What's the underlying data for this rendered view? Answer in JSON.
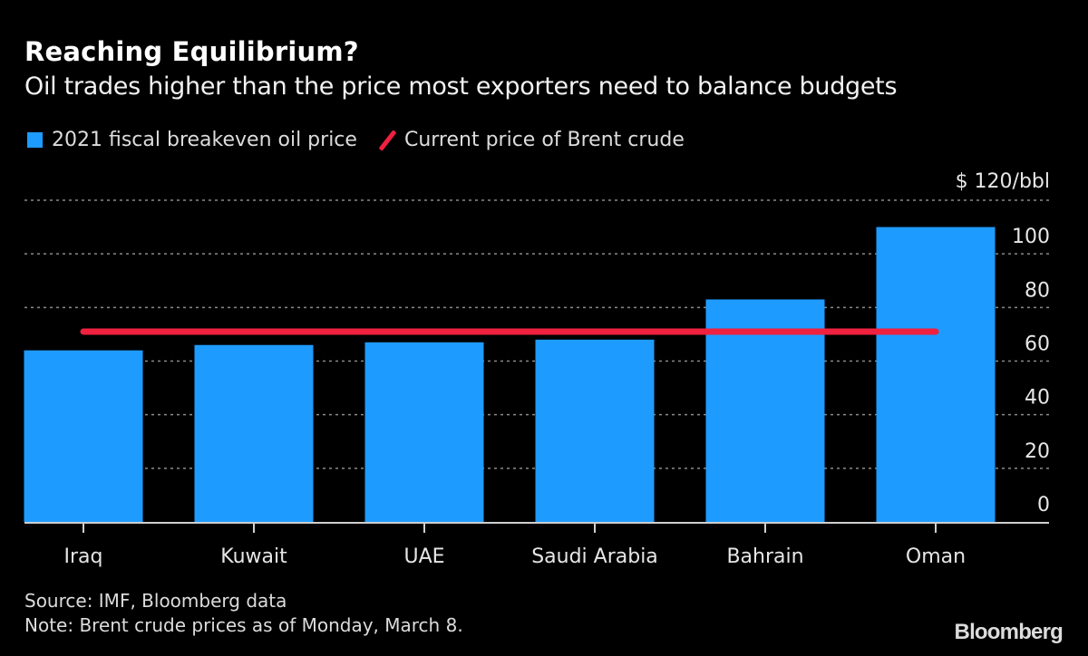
{
  "chart_data": {
    "type": "bar",
    "title": "Reaching Equilibrium?",
    "subtitle": "Oil trades higher than the price most exporters need to balance budgets",
    "categories": [
      "Iraq",
      "Kuwait",
      "UAE",
      "Saudi Arabia",
      "Bahrain",
      "Oman"
    ],
    "series": [
      {
        "name": "2021 fiscal breakeven oil price",
        "type": "bar",
        "color": "#1e9bff",
        "values": [
          64,
          66,
          67,
          68,
          83,
          110
        ]
      },
      {
        "name": "Current price of Brent crude",
        "type": "line",
        "color": "#f0203f",
        "value": 71
      }
    ],
    "legend": [
      "2021 fiscal breakeven oil price",
      "Current price of Brent crude"
    ],
    "legend_position": "top-left",
    "ylim": [
      0,
      120
    ],
    "y_ticks": [
      0,
      20,
      40,
      60,
      80,
      100,
      120
    ],
    "y_tick_labels": [
      "0",
      "20",
      "40",
      "60",
      "80",
      "100",
      "$ 120/bbl"
    ],
    "y_axis_side": "right",
    "grid": true,
    "xlabel": "",
    "ylabel": ""
  },
  "footer": {
    "source": "Source: IMF, Bloomberg data",
    "note": "Note: Brent crude prices as of Monday, March 8."
  },
  "brand": "Bloomberg"
}
